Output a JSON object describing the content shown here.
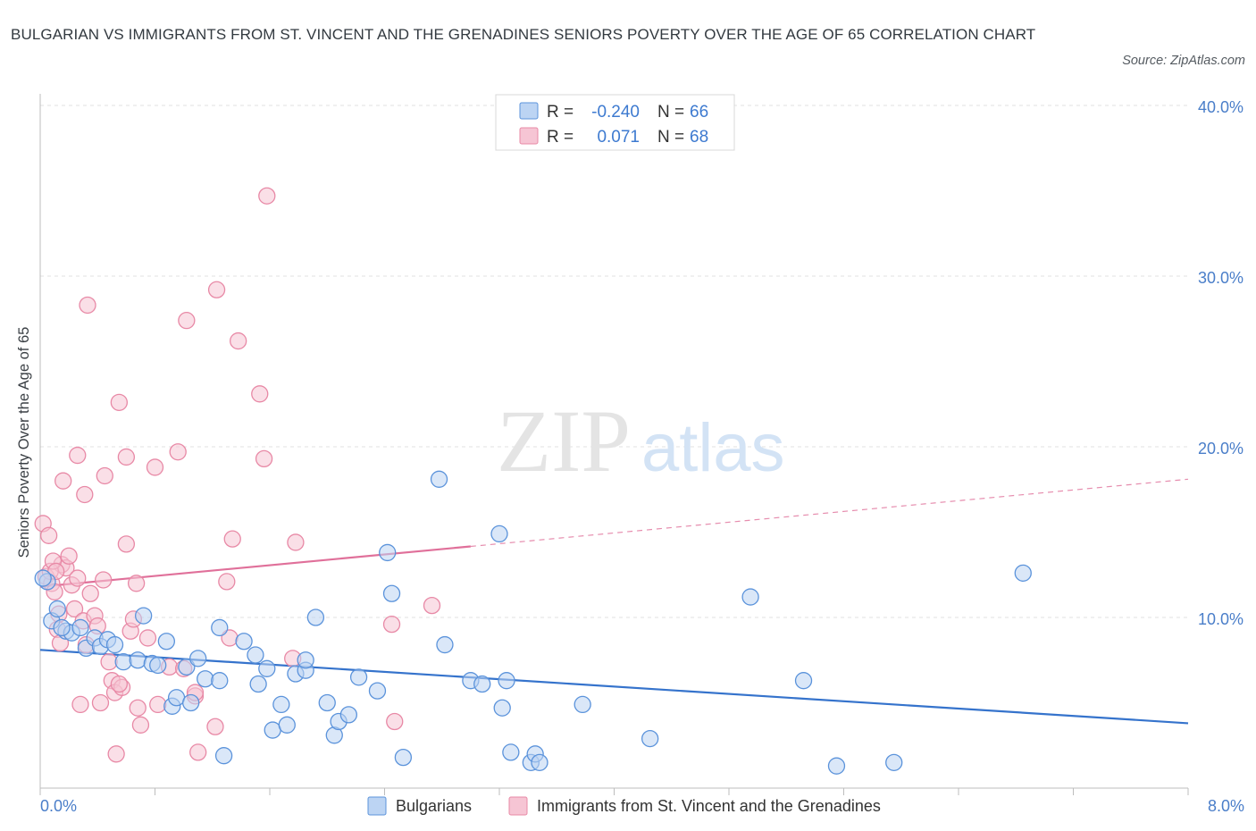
{
  "title": "BULGARIAN VS IMMIGRANTS FROM ST. VINCENT AND THE GRENADINES SENIORS POVERTY OVER THE AGE OF 65 CORRELATION CHART",
  "source": "Source: ZipAtlas.com",
  "watermark": {
    "zip": "ZIP",
    "atlas": "atlas"
  },
  "colors": {
    "blue": "#5b93db",
    "blue_fill": "#bcd4f3",
    "blue_line": "#3573cc",
    "pink": "#e889a6",
    "pink_fill": "#f6c5d4",
    "pink_line": "#e0709a",
    "axis_text": "#4a7ec9",
    "grid": "#e1e1e1"
  },
  "legend": {
    "rows": [
      {
        "r_label": "R =",
        "r_value": "-0.240",
        "n_label": "N =",
        "n_value": "66"
      },
      {
        "r_label": "R =",
        "r_value": "0.071",
        "n_label": "N =",
        "n_value": "68"
      }
    ]
  },
  "chart_data": {
    "type": "scatter",
    "xlabel": "",
    "ylabel": "Seniors Poverty Over the Age of 65",
    "xlim": [
      0,
      8
    ],
    "ylim": [
      0,
      40
    ],
    "x_tick_labels": [
      "0.0%",
      "8.0%"
    ],
    "y_ticks": [
      10,
      20,
      30,
      40
    ],
    "y_tick_labels": [
      "10.0%",
      "20.0%",
      "30.0%",
      "40.0%"
    ],
    "grid": true,
    "legend_position": "top-center",
    "series": [
      {
        "name": "Bulgarians",
        "r": -0.24,
        "n": 66,
        "trend": {
          "x": [
            0,
            8
          ],
          "y": [
            8.1,
            3.8
          ],
          "dashed_from": null
        },
        "points": [
          [
            0.05,
            12.1
          ],
          [
            0.08,
            9.8
          ],
          [
            0.12,
            10.5
          ],
          [
            0.18,
            9.2
          ],
          [
            0.22,
            9.1
          ],
          [
            0.28,
            9.4
          ],
          [
            0.32,
            8.2
          ],
          [
            0.38,
            8.8
          ],
          [
            0.42,
            8.3
          ],
          [
            0.47,
            8.7
          ],
          [
            0.52,
            8.4
          ],
          [
            0.58,
            7.4
          ],
          [
            0.68,
            7.5
          ],
          [
            0.72,
            10.1
          ],
          [
            0.78,
            7.3
          ],
          [
            0.82,
            7.2
          ],
          [
            0.88,
            8.6
          ],
          [
            0.92,
            4.8
          ],
          [
            0.95,
            5.3
          ],
          [
            1.02,
            7.1
          ],
          [
            1.05,
            5.0
          ],
          [
            1.1,
            7.6
          ],
          [
            1.15,
            6.4
          ],
          [
            1.25,
            6.3
          ],
          [
            1.25,
            9.4
          ],
          [
            1.28,
            1.9
          ],
          [
            1.42,
            8.6
          ],
          [
            1.5,
            7.8
          ],
          [
            1.52,
            6.1
          ],
          [
            1.58,
            7.0
          ],
          [
            1.62,
            3.4
          ],
          [
            1.68,
            4.9
          ],
          [
            1.72,
            3.7
          ],
          [
            1.78,
            6.7
          ],
          [
            1.85,
            6.9
          ],
          [
            1.85,
            7.5
          ],
          [
            1.92,
            10.0
          ],
          [
            2.0,
            5.0
          ],
          [
            2.05,
            3.1
          ],
          [
            2.08,
            3.9
          ],
          [
            2.15,
            4.3
          ],
          [
            2.22,
            6.5
          ],
          [
            2.35,
            5.7
          ],
          [
            2.42,
            13.8
          ],
          [
            2.45,
            11.4
          ],
          [
            2.53,
            1.8
          ],
          [
            2.78,
            18.1
          ],
          [
            2.82,
            8.4
          ],
          [
            3.0,
            6.3
          ],
          [
            3.08,
            6.1
          ],
          [
            3.2,
            14.9
          ],
          [
            3.22,
            4.7
          ],
          [
            3.25,
            6.3
          ],
          [
            3.28,
            2.1
          ],
          [
            3.42,
            1.5
          ],
          [
            3.45,
            2.0
          ],
          [
            3.48,
            1.5
          ],
          [
            3.78,
            4.9
          ],
          [
            4.25,
            2.9
          ],
          [
            4.95,
            11.2
          ],
          [
            5.32,
            6.3
          ],
          [
            5.55,
            1.3
          ],
          [
            5.95,
            1.5
          ],
          [
            6.85,
            12.6
          ],
          [
            0.02,
            12.3
          ],
          [
            0.15,
            9.4
          ]
        ]
      },
      {
        "name": "Immigrants from St. Vincent and the Grenadines",
        "r": 0.071,
        "n": 68,
        "trend": {
          "x": [
            0,
            8
          ],
          "y": [
            11.8,
            18.1
          ],
          "dashed_from": 3.0
        },
        "points": [
          [
            0.02,
            15.5
          ],
          [
            0.04,
            12.4
          ],
          [
            0.06,
            14.8
          ],
          [
            0.08,
            12.0
          ],
          [
            0.1,
            11.5
          ],
          [
            0.12,
            9.3
          ],
          [
            0.14,
            8.5
          ],
          [
            0.15,
            13.1
          ],
          [
            0.16,
            18.0
          ],
          [
            0.18,
            12.9
          ],
          [
            0.2,
            13.6
          ],
          [
            0.22,
            11.9
          ],
          [
            0.24,
            10.5
          ],
          [
            0.26,
            12.3
          ],
          [
            0.26,
            19.5
          ],
          [
            0.28,
            4.9
          ],
          [
            0.3,
            9.8
          ],
          [
            0.31,
            17.2
          ],
          [
            0.32,
            8.4
          ],
          [
            0.33,
            28.3
          ],
          [
            0.35,
            11.4
          ],
          [
            0.38,
            10.1
          ],
          [
            0.4,
            9.5
          ],
          [
            0.42,
            5.0
          ],
          [
            0.44,
            12.2
          ],
          [
            0.45,
            18.3
          ],
          [
            0.48,
            7.4
          ],
          [
            0.5,
            6.3
          ],
          [
            0.52,
            5.6
          ],
          [
            0.53,
            2.0
          ],
          [
            0.55,
            22.6
          ],
          [
            0.57,
            5.9
          ],
          [
            0.6,
            19.4
          ],
          [
            0.6,
            14.3
          ],
          [
            0.63,
            9.2
          ],
          [
            0.65,
            9.9
          ],
          [
            0.67,
            12.0
          ],
          [
            0.68,
            4.7
          ],
          [
            0.7,
            3.7
          ],
          [
            0.75,
            8.8
          ],
          [
            0.8,
            18.8
          ],
          [
            0.82,
            4.9
          ],
          [
            0.9,
            7.1
          ],
          [
            0.96,
            19.7
          ],
          [
            1.0,
            7.0
          ],
          [
            1.02,
            27.4
          ],
          [
            1.08,
            5.4
          ],
          [
            1.08,
            5.6
          ],
          [
            1.1,
            2.1
          ],
          [
            1.22,
            3.6
          ],
          [
            1.23,
            29.2
          ],
          [
            1.3,
            12.1
          ],
          [
            1.32,
            8.8
          ],
          [
            1.34,
            14.6
          ],
          [
            1.38,
            26.2
          ],
          [
            1.53,
            23.1
          ],
          [
            1.56,
            19.3
          ],
          [
            1.58,
            34.7
          ],
          [
            1.76,
            7.6
          ],
          [
            1.78,
            14.4
          ],
          [
            2.45,
            9.6
          ],
          [
            2.47,
            3.9
          ],
          [
            2.73,
            10.7
          ],
          [
            0.07,
            12.7
          ],
          [
            0.09,
            13.3
          ],
          [
            0.11,
            12.7
          ],
          [
            0.13,
            10.2
          ],
          [
            0.55,
            6.1
          ]
        ]
      }
    ]
  },
  "bottom_legend": [
    {
      "label": "Bulgarians"
    },
    {
      "label": "Immigrants from St. Vincent and the Grenadines"
    }
  ]
}
